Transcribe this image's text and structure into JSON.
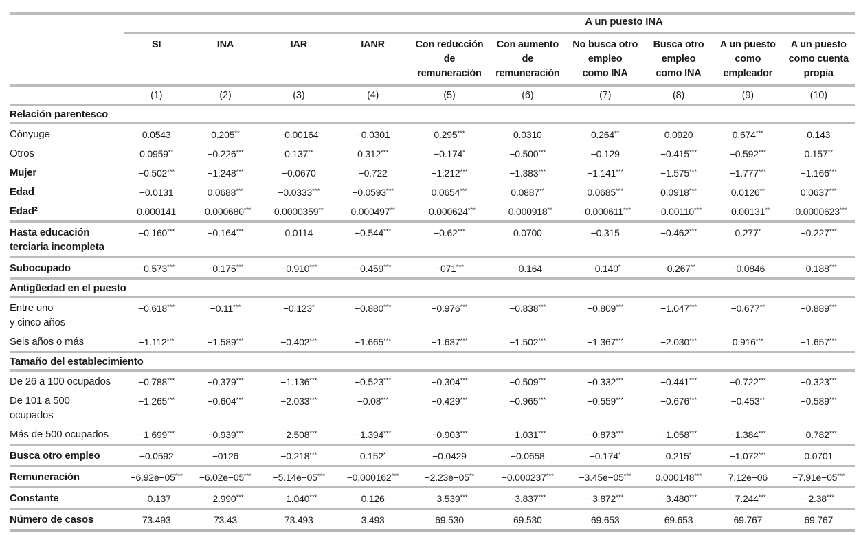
{
  "table": {
    "spanner_label": "A un puesto INA",
    "spanner_span_columns": [
      5,
      10
    ],
    "columns": [
      {
        "number": "(1)",
        "label_lines": [
          "SI"
        ]
      },
      {
        "number": "(2)",
        "label_lines": [
          "INA"
        ]
      },
      {
        "number": "(3)",
        "label_lines": [
          "IAR"
        ]
      },
      {
        "number": "(4)",
        "label_lines": [
          "IANR"
        ]
      },
      {
        "number": "(5)",
        "label_lines": [
          "Con reducción",
          "de",
          "remuneración"
        ]
      },
      {
        "number": "(6)",
        "label_lines": [
          "Con aumento",
          "de",
          "remuneración"
        ]
      },
      {
        "number": "(7)",
        "label_lines": [
          "No busca otro",
          "empleo",
          "como INA"
        ]
      },
      {
        "number": "(8)",
        "label_lines": [
          "Busca otro",
          "empleo",
          "como INA"
        ]
      },
      {
        "number": "(9)",
        "label_lines": [
          "A un puesto",
          "como",
          "empleador"
        ]
      },
      {
        "number": "(10)",
        "label_lines": [
          "A un puesto",
          "como cuenta",
          "propia"
        ]
      }
    ],
    "rows": [
      {
        "type": "section",
        "label_lines": [
          "Relación parentesco"
        ],
        "rule_below": true
      },
      {
        "type": "data",
        "label_lines": [
          "Cónyuge"
        ],
        "bold": false,
        "rule_below": false,
        "values": [
          "0.0543",
          "0.205**",
          "−0.00164",
          "−0.0301",
          "0.295***",
          "0.0310",
          "0.264**",
          "0.0920",
          "0.674***",
          "0.143"
        ]
      },
      {
        "type": "data",
        "label_lines": [
          "Otros"
        ],
        "bold": false,
        "rule_below": false,
        "values": [
          "0.0959**",
          "−0.226***",
          "0.137**",
          "0.312***",
          "−0.174*",
          "−0.500***",
          "−0.129",
          "−0.415***",
          "−0.592***",
          "0.157**"
        ]
      },
      {
        "type": "data",
        "label_lines": [
          "Mujer"
        ],
        "bold": true,
        "rule_below": false,
        "values": [
          "−0.502***",
          "−1.248***",
          "−0.0670",
          "−0.722",
          "−1.212***",
          "−1.383***",
          "−1.141***",
          "−1.575***",
          "−1.777***",
          "−1.166***"
        ]
      },
      {
        "type": "data",
        "label_lines": [
          "Edad"
        ],
        "bold": true,
        "rule_below": false,
        "values": [
          "−0.0131",
          "0.0688***",
          "−0.0333***",
          "−0.0593***",
          "0.0654***",
          "0.0887**",
          "0.0685***",
          "0.0918***",
          "0.0126**",
          "0.0637***"
        ]
      },
      {
        "type": "data",
        "label_lines": [
          "Edad²"
        ],
        "bold": true,
        "rule_below": true,
        "values": [
          "0.000141",
          "−0.000680***",
          "0.0000359**",
          "0.000497**",
          "−0.000624***",
          "−0.000918**",
          "−0.000611***",
          "−0.00110***",
          "−0.00131**",
          "−0.0000623***"
        ]
      },
      {
        "type": "data",
        "label_lines": [
          "Hasta educación",
          "terciaria incompleta"
        ],
        "bold": true,
        "rule_below": true,
        "values": [
          "−0.160***",
          "−0.164***",
          "0.0114",
          "−0.544***",
          "−0.62***",
          "0.0700",
          "−0.315",
          "−0.462***",
          "0.277*",
          "−0.227***"
        ]
      },
      {
        "type": "data",
        "label_lines": [
          "Subocupado"
        ],
        "bold": true,
        "rule_below": true,
        "values": [
          "−0.573***",
          "−0.175***",
          "−0.910***",
          "−0.459***",
          "−071***",
          "−0.164",
          "−0.140*",
          "−0.267**",
          "−0.0846",
          "−0.188***"
        ]
      },
      {
        "type": "section",
        "label_lines": [
          "Antigüedad en el puesto"
        ],
        "rule_below": true
      },
      {
        "type": "data",
        "label_lines": [
          "Entre uno",
          "y cinco años"
        ],
        "bold": false,
        "rule_below": false,
        "values": [
          "−0.618***",
          "−0.11***",
          "−0.123*",
          "−0.880***",
          "−0.976***",
          "−0.838***",
          "−0.809***",
          "−1.047***",
          "−0.677**",
          "−0.889***"
        ]
      },
      {
        "type": "data",
        "label_lines": [
          "Seis años o más"
        ],
        "bold": false,
        "rule_below": true,
        "values": [
          "−1.112***",
          "−1.589***",
          "−0.402***",
          "−1.665***",
          "−1.637***",
          "−1.502***",
          "−1.367***",
          "−2.030***",
          "0.916***",
          "−1.657***"
        ]
      },
      {
        "type": "section",
        "label_lines": [
          "Tamaño del establecimiento"
        ],
        "rule_below": true
      },
      {
        "type": "data",
        "label_lines": [
          "De 26 a 100 ocupados"
        ],
        "bold": false,
        "rule_below": false,
        "values": [
          "−0.788***",
          "−0.379***",
          "−1.136***",
          "−0.523***",
          "−0.304***",
          "−0.509***",
          "−0.332***",
          "−0.441***",
          "−0.722***",
          "−0.323***"
        ]
      },
      {
        "type": "data",
        "label_lines": [
          "De 101 a 500",
          "ocupados"
        ],
        "bold": false,
        "rule_below": false,
        "values": [
          "−1.265***",
          "−0.604***",
          "−2.033***",
          "−0.08***",
          "−0.429***",
          "−0.965***",
          "−0.559***",
          "−0.676***",
          "−0.453**",
          "−0.589***"
        ]
      },
      {
        "type": "data",
        "label_lines": [
          "Más de 500 ocupados"
        ],
        "bold": false,
        "rule_below": true,
        "values": [
          "−1.699***",
          "−0.939***",
          "−2.508***",
          "−1.394***",
          "−0.903***",
          "−1.031***",
          "−0.873***",
          "−1.058***",
          "−1.384***",
          "−0.782***"
        ]
      },
      {
        "type": "data",
        "label_lines": [
          "Busca otro empleo"
        ],
        "bold": true,
        "rule_below": true,
        "values": [
          "−0.0592",
          "−0126",
          "−0.218***",
          "0.152*",
          "−0.0429",
          "−0.0658",
          "−0.174*",
          "0.215*",
          "−1.072***",
          "0.0701"
        ]
      },
      {
        "type": "data",
        "label_lines": [
          "Remuneración"
        ],
        "bold": true,
        "rule_below": true,
        "values": [
          "−6.92e−05***",
          "−6.02e−05***",
          "−5.14e−05***",
          "−0.000162***",
          "−2.23e−05**",
          "−0.000237***",
          "−3.45e−05***",
          "0.000148***",
          "7.12e−06",
          "−7.91e−05***"
        ]
      },
      {
        "type": "data",
        "label_lines": [
          "Constante"
        ],
        "bold": true,
        "rule_below": true,
        "values": [
          "−0.137",
          "−2.990***",
          "−1.040***",
          "0.126",
          "−3.539***",
          "−3.837***",
          "−3.872***",
          "−3.480***",
          "−7.244***",
          "−2.38***"
        ]
      },
      {
        "type": "data",
        "label_lines": [
          "Número de casos"
        ],
        "bold": true,
        "rule_below": true,
        "last": true,
        "values": [
          "73.493",
          "73.43",
          "73.493",
          "3.493",
          "69.530",
          "69.530",
          "69.653",
          "69.653",
          "69.767",
          "69.767"
        ]
      }
    ],
    "colors": {
      "rule_gray": "#bcbcbe",
      "text": "#1c1c1e",
      "background": "#ffffff"
    }
  }
}
